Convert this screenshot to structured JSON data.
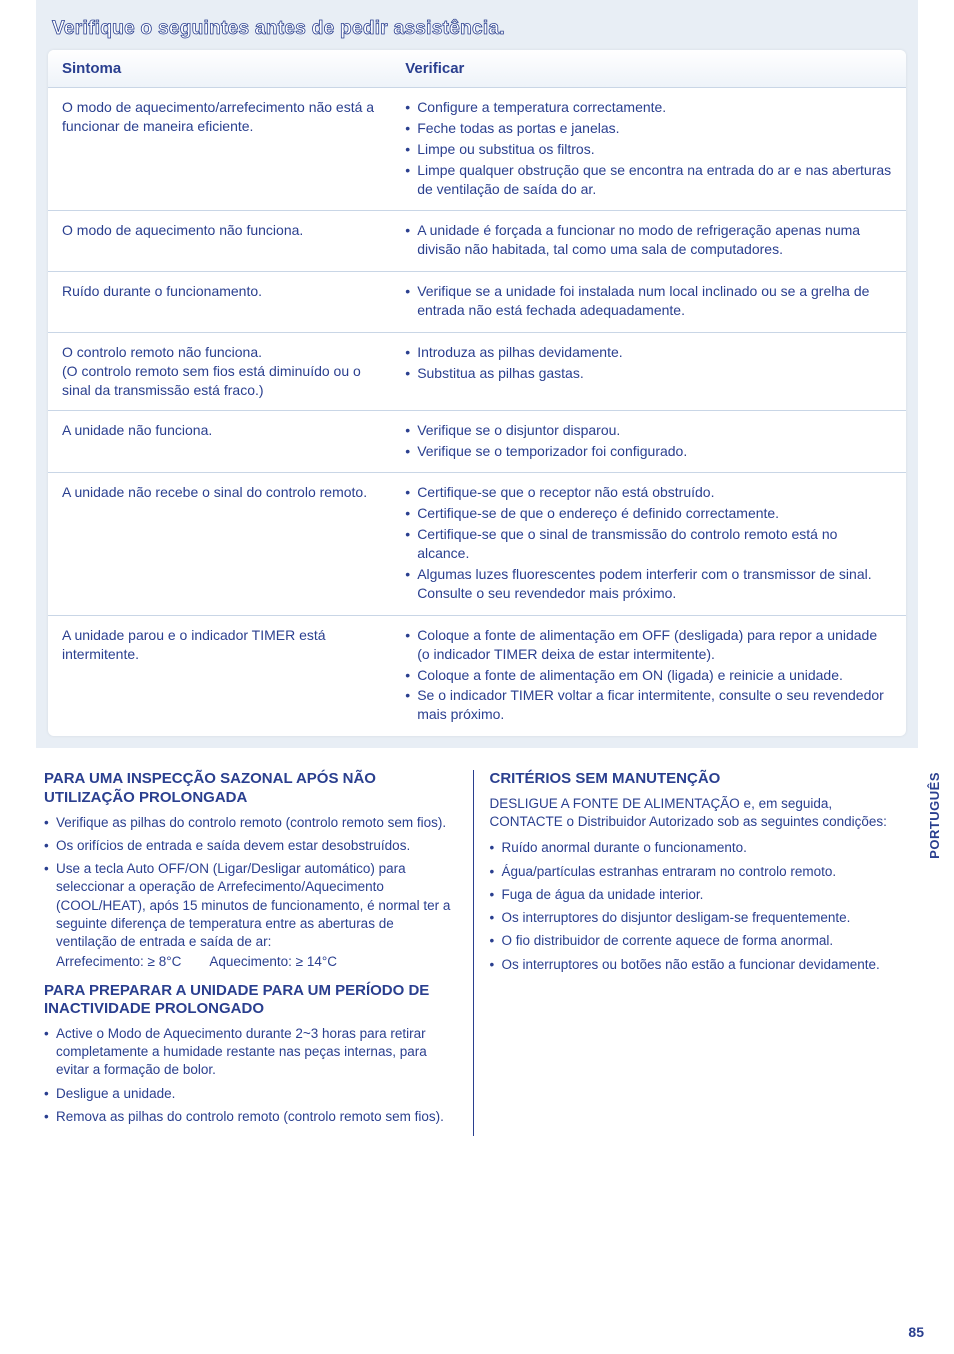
{
  "colors": {
    "text": "#2a3f8f",
    "panel_bg": "#e8eef5",
    "table_bg": "#ffffff",
    "border": "#c9d6e6"
  },
  "sectionTitle": "Verifique o seguintes antes de pedir assistência.",
  "headers": {
    "sintoma": "Sintoma",
    "verificar": "Verificar"
  },
  "rows": [
    {
      "sintoma": "O modo de aquecimento/arrefecimento não está a funcionar de maneira eficiente.",
      "verificar": [
        "Configure a temperatura correctamente.",
        "Feche todas as portas e janelas.",
        "Limpe ou substitua os filtros.",
        "Limpe qualquer obstrução que se encontra na entrada do ar e nas aberturas de ventilação de saída do ar."
      ]
    },
    {
      "sintoma": "O modo de aquecimento não funciona.",
      "verificar": [
        "A unidade é forçada a funcionar no modo de refrigeração apenas numa divisão não habitada, tal como uma sala de computadores."
      ]
    },
    {
      "sintoma": "Ruído durante o funcionamento.",
      "verificar": [
        "Verifique se a unidade foi instalada num local inclinado ou se a grelha de entrada não está fechada adequadamente."
      ]
    },
    {
      "sintoma": "O controlo remoto não funciona.\n(O controlo remoto sem fios está diminuído ou o sinal da transmissão está fraco.)",
      "verificar": [
        "Introduza as pilhas devidamente.",
        "Substitua as pilhas gastas."
      ]
    },
    {
      "sintoma": "A unidade não funciona.",
      "verificar": [
        "Verifique se o disjuntor disparou.",
        "Verifique se o temporizador foi configurado."
      ]
    },
    {
      "sintoma": "A unidade não recebe o sinal do controlo remoto.",
      "verificar": [
        "Certifique-se que o receptor não está obstruído.",
        "Certifique-se de que o endereço é definido correctamente.",
        "Certifique-se que o sinal de transmissão do controlo remoto está no alcance.",
        "Algumas luzes fluorescentes podem interferir com o transmissor de sinal. Consulte o seu revendedor mais próximo."
      ]
    },
    {
      "sintoma": "A unidade parou e o indicador TIMER está intermitente.",
      "verificar": [
        "Coloque a fonte de alimentação em OFF (desligada) para repor a unidade (o indicador TIMER deixa de estar intermitente).",
        "Coloque a fonte de alimentação em ON (ligada) e reinicie a unidade.",
        "Se o indicador TIMER voltar a ficar intermitente, consulte o seu revendedor mais próximo."
      ]
    }
  ],
  "left": {
    "h1": "PARA UMA INSPECÇÃO SAZONAL APÓS NÃO UTILIZAÇÃO PROLONGADA",
    "b1": [
      "Verifique as pilhas do controlo remoto (controlo remoto sem fios).",
      "Os orifícios de entrada e saída devem estar desobstruídos.",
      "Use a tecla Auto OFF/ON (Ligar/Desligar automático) para seleccionar a operação de Arrefecimento/Aquecimento (COOL/HEAT), após 15 minutos de funcionamento, é normal ter a seguinte diferença de temperatura entre as aberturas de ventilação de entrada e saída de ar:"
    ],
    "b1_tail_a": "Arrefecimento: ≥ 8°C",
    "b1_tail_b": "Aquecimento: ≥ 14°C",
    "h2": "PARA PREPARAR A UNIDADE PARA UM PERÍODO DE INACTIVIDADE PROLONGADO",
    "b2": [
      "Active o Modo de Aquecimento durante 2~3 horas para retirar completamente a humidade restante nas peças internas, para evitar a formação de bolor.",
      "Desligue a unidade.",
      "Remova as pilhas do controlo remoto (controlo remoto sem fios)."
    ]
  },
  "right": {
    "h1": "CRITÉRIOS SEM MANUTENÇÃO",
    "intro": "DESLIGUE A FONTE DE ALIMENTAÇÃO e, em seguida, CONTACTE o Distribuidor Autorizado sob as seguintes condições:",
    "b": [
      "Ruído anormal durante o funcionamento.",
      "Água/partículas estranhas entraram no controlo remoto.",
      "Fuga de água da unidade interior.",
      "Os interruptores do disjuntor desligam-se frequentemente.",
      "O fio distribuidor de corrente aquece de forma anormal.",
      "Os interruptores ou botões não estão a funcionar devidamente."
    ]
  },
  "sideTab": "PORTUGUÊS",
  "pageNumber": "85"
}
